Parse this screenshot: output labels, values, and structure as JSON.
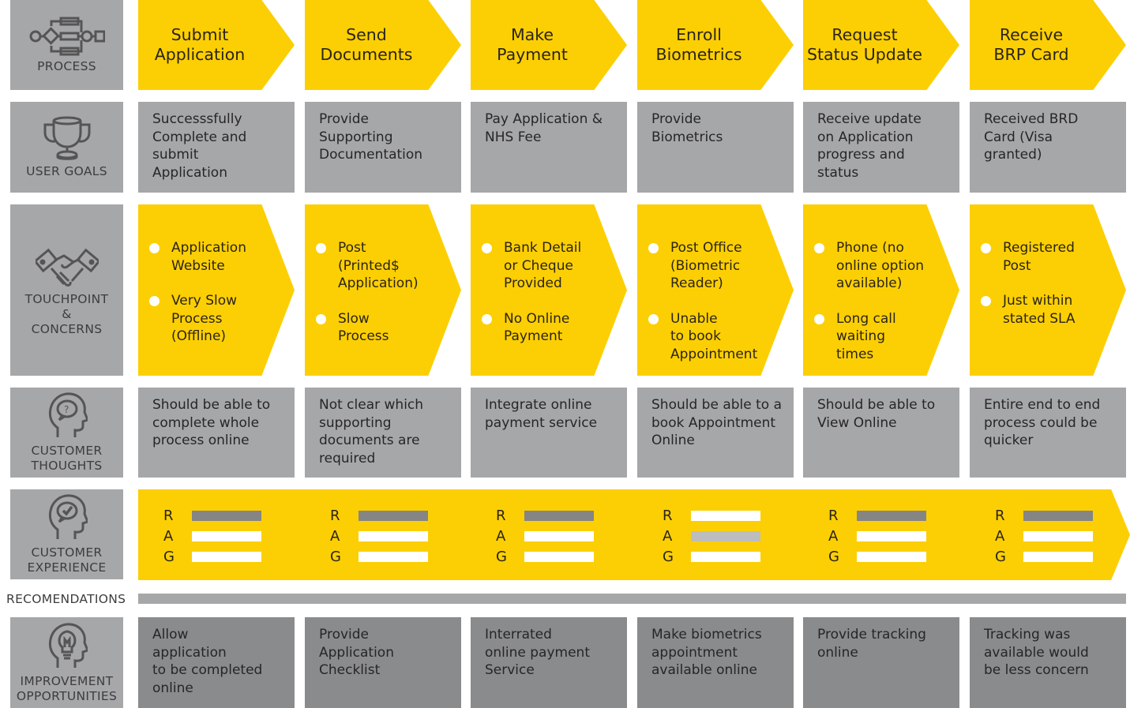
{
  "colors": {
    "yellow": "#fccf04",
    "label_grey": "#a6a7a9",
    "content_grey": "#a6a7a9",
    "opportunity_grey": "#8a8b8d",
    "rag_active": "#858585",
    "rag_amber_active": "#bdbdbd",
    "rag_inactive": "#ffffff"
  },
  "row_labels": {
    "process": {
      "label": "PROCESS",
      "icon": "process-flow-icon"
    },
    "user_goals": {
      "label": "USER GOALS",
      "icon": "trophy-icon"
    },
    "touchpoint": {
      "label_line1": "TOUCHPOINT",
      "label_line2": "&",
      "label_line3": "CONCERNS",
      "icon": "handshake-icon"
    },
    "thoughts": {
      "label_line1": "CUSTOMER",
      "label_line2": "THOUGHTS",
      "icon": "head-question-icon"
    },
    "experience": {
      "label_line1": "CUSTOMER",
      "label_line2": "EXPERIENCE",
      "icon": "head-check-icon"
    },
    "recommendations": {
      "label": "RECOMENDATIONS"
    },
    "opportunities": {
      "label_line1": "IMPROVEMENT",
      "label_line2": "OPPORTUNITIES",
      "icon": "head-lightbulb-icon"
    }
  },
  "stages": [
    {
      "process": "Submit\nApplication",
      "goal": "Successsfully\nComplete and\nsubmit\nApplication",
      "touchpoints": [
        "Application\nWebsite",
        "Very Slow\nProcess\n(Offline)"
      ],
      "thought": "Should be able to\ncomplete whole\nprocess online",
      "rag": {
        "R": "active",
        "A": "inactive",
        "G": "inactive"
      },
      "opportunity": "Allow\napplication\nto be completed\nonline"
    },
    {
      "process": "Send\nDocuments",
      "goal": "Provide\nSupporting\nDocumentation",
      "touchpoints": [
        "Post\n(Printed$\nApplication)",
        "Slow\nProcess"
      ],
      "thought": "Not clear which\nsupporting\ndocuments are\nrequired",
      "rag": {
        "R": "active",
        "A": "inactive",
        "G": "inactive"
      },
      "opportunity": "Provide\nApplication\nChecklist"
    },
    {
      "process": "Make\nPayment",
      "goal": "Pay Application &\nNHS Fee",
      "touchpoints": [
        "Bank Detail\nor Cheque\nProvided",
        "No Online\nPayment"
      ],
      "thought": "Integrate online\npayment service",
      "rag": {
        "R": "active",
        "A": "inactive",
        "G": "inactive"
      },
      "opportunity": "Interrated\nonline payment\nService"
    },
    {
      "process": "Enroll\nBiometrics",
      "goal": "Provide\nBiometrics",
      "touchpoints": [
        "Post Office\n(Biometric\nReader)",
        "Unable\nto book\nAppointment"
      ],
      "thought": "Should be able to a\nbook Appointment\nOnline",
      "rag": {
        "R": "inactive",
        "A": "active",
        "G": "inactive"
      },
      "opportunity": "Make biometrics\nappointment\navailable online"
    },
    {
      "process": "Request\nStatus Update",
      "goal": "Receive update\non Application\nprogress and\nstatus",
      "touchpoints": [
        "Phone (no\nonline option\navailable)",
        "Long call\nwaiting\ntimes"
      ],
      "thought": "Should be able to\nView Online",
      "rag": {
        "R": "active",
        "A": "inactive",
        "G": "inactive"
      },
      "opportunity": "Provide tracking\nonline"
    },
    {
      "process": "Receive\nBRP Card",
      "goal": "Received BRD\nCard (Visa\ngranted)",
      "touchpoints": [
        "Registered\nPost",
        "Just within\nstated SLA"
      ],
      "thought": "Entire end to end\nprocess could be\nquicker",
      "rag": {
        "R": "active",
        "A": "inactive",
        "G": "inactive"
      },
      "opportunity": "Tracking was\navailable would\nbe less concern"
    }
  ],
  "rag_letters": [
    "R",
    "A",
    "G"
  ]
}
